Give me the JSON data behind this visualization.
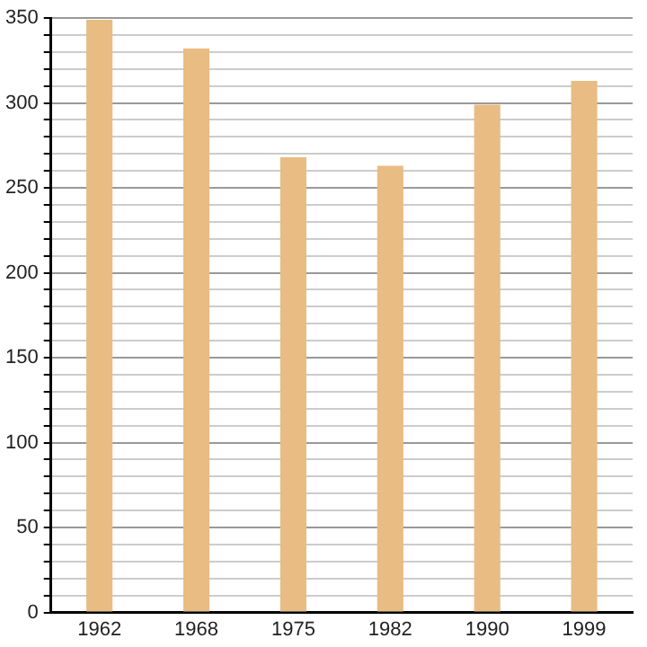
{
  "chart_data": {
    "type": "bar",
    "categories": [
      "1962",
      "1968",
      "1975",
      "1982",
      "1990",
      "1999"
    ],
    "values": [
      349,
      332,
      268,
      263,
      299,
      313
    ],
    "color": "#e8bc82",
    "ylim": [
      0,
      350
    ],
    "yticks": [
      0,
      {
        "value": 10,
        "label": null
      },
      {
        "value": 20,
        "label": null
      },
      {
        "value": 30,
        "label": null
      },
      {
        "value": 40,
        "label": null
      },
      50,
      {
        "value": 60,
        "label": null
      },
      {
        "value": 70,
        "label": null
      },
      {
        "value": 80,
        "label": null
      },
      {
        "value": 90,
        "label": null
      },
      100,
      {
        "value": 110,
        "label": null
      },
      {
        "value": 120,
        "label": null
      },
      {
        "value": 130,
        "label": null
      },
      {
        "value": 140,
        "label": null
      },
      150,
      {
        "value": 160,
        "label": null
      },
      {
        "value": 170,
        "label": null
      },
      {
        "value": 180,
        "label": null
      },
      {
        "value": 190,
        "label": null
      },
      200,
      {
        "value": 210,
        "label": null
      },
      {
        "value": 220,
        "label": null
      },
      {
        "value": 230,
        "label": null
      },
      {
        "value": 240,
        "label": null
      },
      250,
      {
        "value": 260,
        "label": null
      },
      {
        "value": 270,
        "label": null
      },
      {
        "value": 280,
        "label": null
      },
      {
        "value": 290,
        "label": null
      },
      300,
      {
        "value": 310,
        "label": null
      },
      {
        "value": 320,
        "label": null
      },
      {
        "value": 330,
        "label": null
      },
      {
        "value": 340,
        "label": null
      },
      350
    ],
    "grid": "y"
  }
}
